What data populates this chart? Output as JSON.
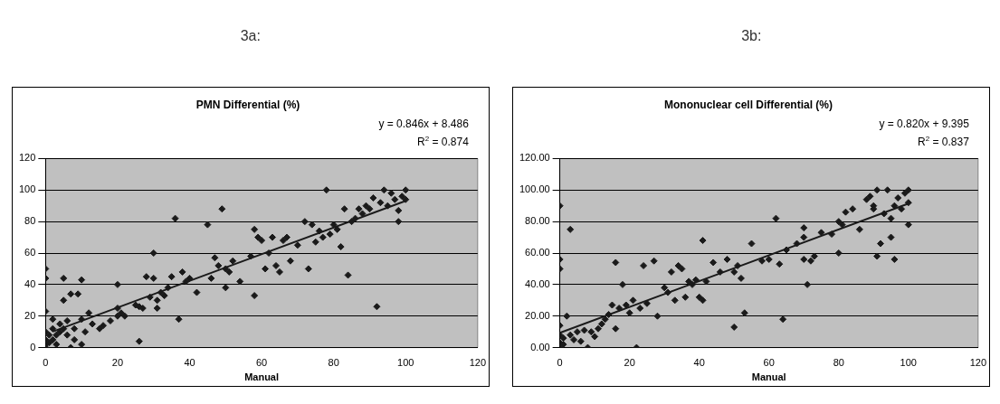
{
  "chart_data": [
    {
      "type": "scatter",
      "title": "PMN Differential (%)",
      "xlabel": "Manual",
      "annotations": [
        "3a:",
        "y = 0.846x + 8.486",
        "R$^{2}$ = 0.874"
      ],
      "xlim": [
        0,
        120
      ],
      "xticks": [
        0,
        20,
        40,
        60,
        80,
        100,
        120
      ],
      "ylim": [
        0,
        120
      ],
      "yticks": [
        0,
        20,
        40,
        60,
        80,
        100,
        120
      ],
      "grid": "y",
      "legend": false,
      "marker": "diamond",
      "series": [
        {
          "type": "scatter",
          "color": "#1a1a1a",
          "x": [
            0,
            0,
            0,
            0,
            0,
            0,
            0,
            1,
            1,
            2,
            2,
            2,
            3,
            3,
            4,
            4,
            5,
            5,
            5,
            6,
            6,
            7,
            7,
            8,
            8,
            9,
            10,
            10,
            10,
            11,
            12,
            13,
            15,
            16,
            18,
            20,
            20,
            20,
            21,
            22,
            25,
            26,
            26,
            27,
            28,
            29,
            30,
            30,
            31,
            31,
            32,
            33,
            34,
            35,
            36,
            37,
            38,
            39,
            40,
            42,
            45,
            46,
            47,
            48,
            49,
            50,
            50,
            51,
            52,
            54,
            57,
            58,
            58,
            59,
            60,
            61,
            62,
            63,
            64,
            65,
            66,
            67,
            68,
            70,
            72,
            73,
            74,
            75,
            76,
            77,
            78,
            79,
            80,
            81,
            82,
            83,
            84,
            85,
            86,
            87,
            88,
            89,
            90,
            91,
            92,
            93,
            94,
            95,
            96,
            97,
            98,
            98,
            99,
            100,
            100
          ],
          "values": [
            50,
            44,
            23,
            10,
            5,
            2,
            0,
            8,
            3,
            12,
            5,
            18,
            8,
            2,
            15,
            10,
            30,
            44,
            12,
            17,
            8,
            0,
            34,
            12,
            5,
            34,
            43,
            18,
            2,
            10,
            22,
            15,
            12,
            14,
            17,
            40,
            25,
            20,
            22,
            20,
            27,
            26,
            4,
            25,
            45,
            32,
            60,
            44,
            25,
            30,
            35,
            33,
            38,
            45,
            82,
            18,
            48,
            42,
            44,
            35,
            78,
            44,
            57,
            52,
            88,
            50,
            38,
            48,
            55,
            42,
            58,
            75,
            33,
            70,
            68,
            50,
            60,
            70,
            52,
            48,
            68,
            70,
            55,
            65,
            80,
            50,
            78,
            67,
            74,
            70,
            100,
            72,
            78,
            75,
            64,
            88,
            46,
            80,
            82,
            88,
            85,
            90,
            88,
            95,
            26,
            92,
            100,
            90,
            98,
            94,
            87,
            80,
            96,
            100,
            94
          ]
        },
        {
          "type": "line",
          "color": "#1a1a1a",
          "marker": "none",
          "x": [
            2,
            100
          ],
          "values": [
            10.2,
            93.1
          ]
        }
      ]
    },
    {
      "type": "scatter",
      "title": "Mononuclear cell Differential (%)",
      "xlabel": "Manual",
      "annotations": [
        "3b:",
        "y = 0.820x + 9.395",
        "R$^{2}$ = 0.837"
      ],
      "xlim": [
        0,
        120
      ],
      "xticks": [
        0,
        20,
        40,
        60,
        80,
        100,
        120
      ],
      "ylim": [
        0,
        120
      ],
      "yticks": [
        {
          "value": 0,
          "label": "0.00"
        },
        {
          "value": 20,
          "label": "20.00"
        },
        {
          "value": 40,
          "label": "40.00"
        },
        {
          "value": 60,
          "label": "60.00"
        },
        {
          "value": 80,
          "label": "80.00"
        },
        {
          "value": 100,
          "label": "100.00"
        },
        {
          "value": 120,
          "label": "120.00"
        }
      ],
      "grid": "y",
      "legend": false,
      "marker": "diamond",
      "series": [
        {
          "type": "scatter",
          "color": "#1a1a1a",
          "x": [
            0,
            0,
            0,
            0,
            0,
            0,
            0,
            1,
            1,
            2,
            3,
            3,
            4,
            5,
            6,
            7,
            8,
            9,
            10,
            11,
            12,
            13,
            14,
            15,
            16,
            16,
            17,
            18,
            19,
            20,
            21,
            22,
            23,
            24,
            25,
            27,
            28,
            30,
            31,
            32,
            33,
            34,
            35,
            36,
            37,
            38,
            39,
            40,
            41,
            41,
            42,
            44,
            46,
            48,
            50,
            50,
            51,
            52,
            53,
            55,
            58,
            60,
            62,
            63,
            64,
            65,
            68,
            70,
            70,
            70,
            71,
            72,
            73,
            75,
            78,
            80,
            80,
            81,
            82,
            84,
            86,
            88,
            89,
            90,
            90,
            91,
            91,
            92,
            93,
            94,
            95,
            95,
            96,
            96,
            97,
            98,
            99,
            100,
            100,
            100
          ],
          "values": [
            90,
            56,
            50,
            14,
            8,
            3,
            0,
            2,
            6,
            20,
            75,
            8,
            5,
            10,
            4,
            11,
            0,
            10,
            7,
            12,
            15,
            18,
            21,
            27,
            54,
            12,
            25,
            40,
            27,
            22,
            30,
            0,
            25,
            52,
            28,
            55,
            20,
            38,
            35,
            48,
            30,
            52,
            50,
            32,
            42,
            40,
            43,
            32,
            30,
            68,
            42,
            54,
            48,
            56,
            48,
            13,
            52,
            44,
            22,
            66,
            55,
            56,
            82,
            53,
            18,
            62,
            66,
            70,
            76,
            56,
            40,
            55,
            58,
            73,
            72,
            80,
            60,
            78,
            86,
            88,
            75,
            94,
            96,
            90,
            88,
            100,
            58,
            66,
            85,
            100,
            70,
            82,
            90,
            56,
            95,
            88,
            98,
            100,
            78,
            92
          ]
        },
        {
          "type": "line",
          "color": "#1a1a1a",
          "marker": "none",
          "x": [
            0,
            100
          ],
          "values": [
            9.4,
            91.4
          ]
        }
      ]
    }
  ]
}
